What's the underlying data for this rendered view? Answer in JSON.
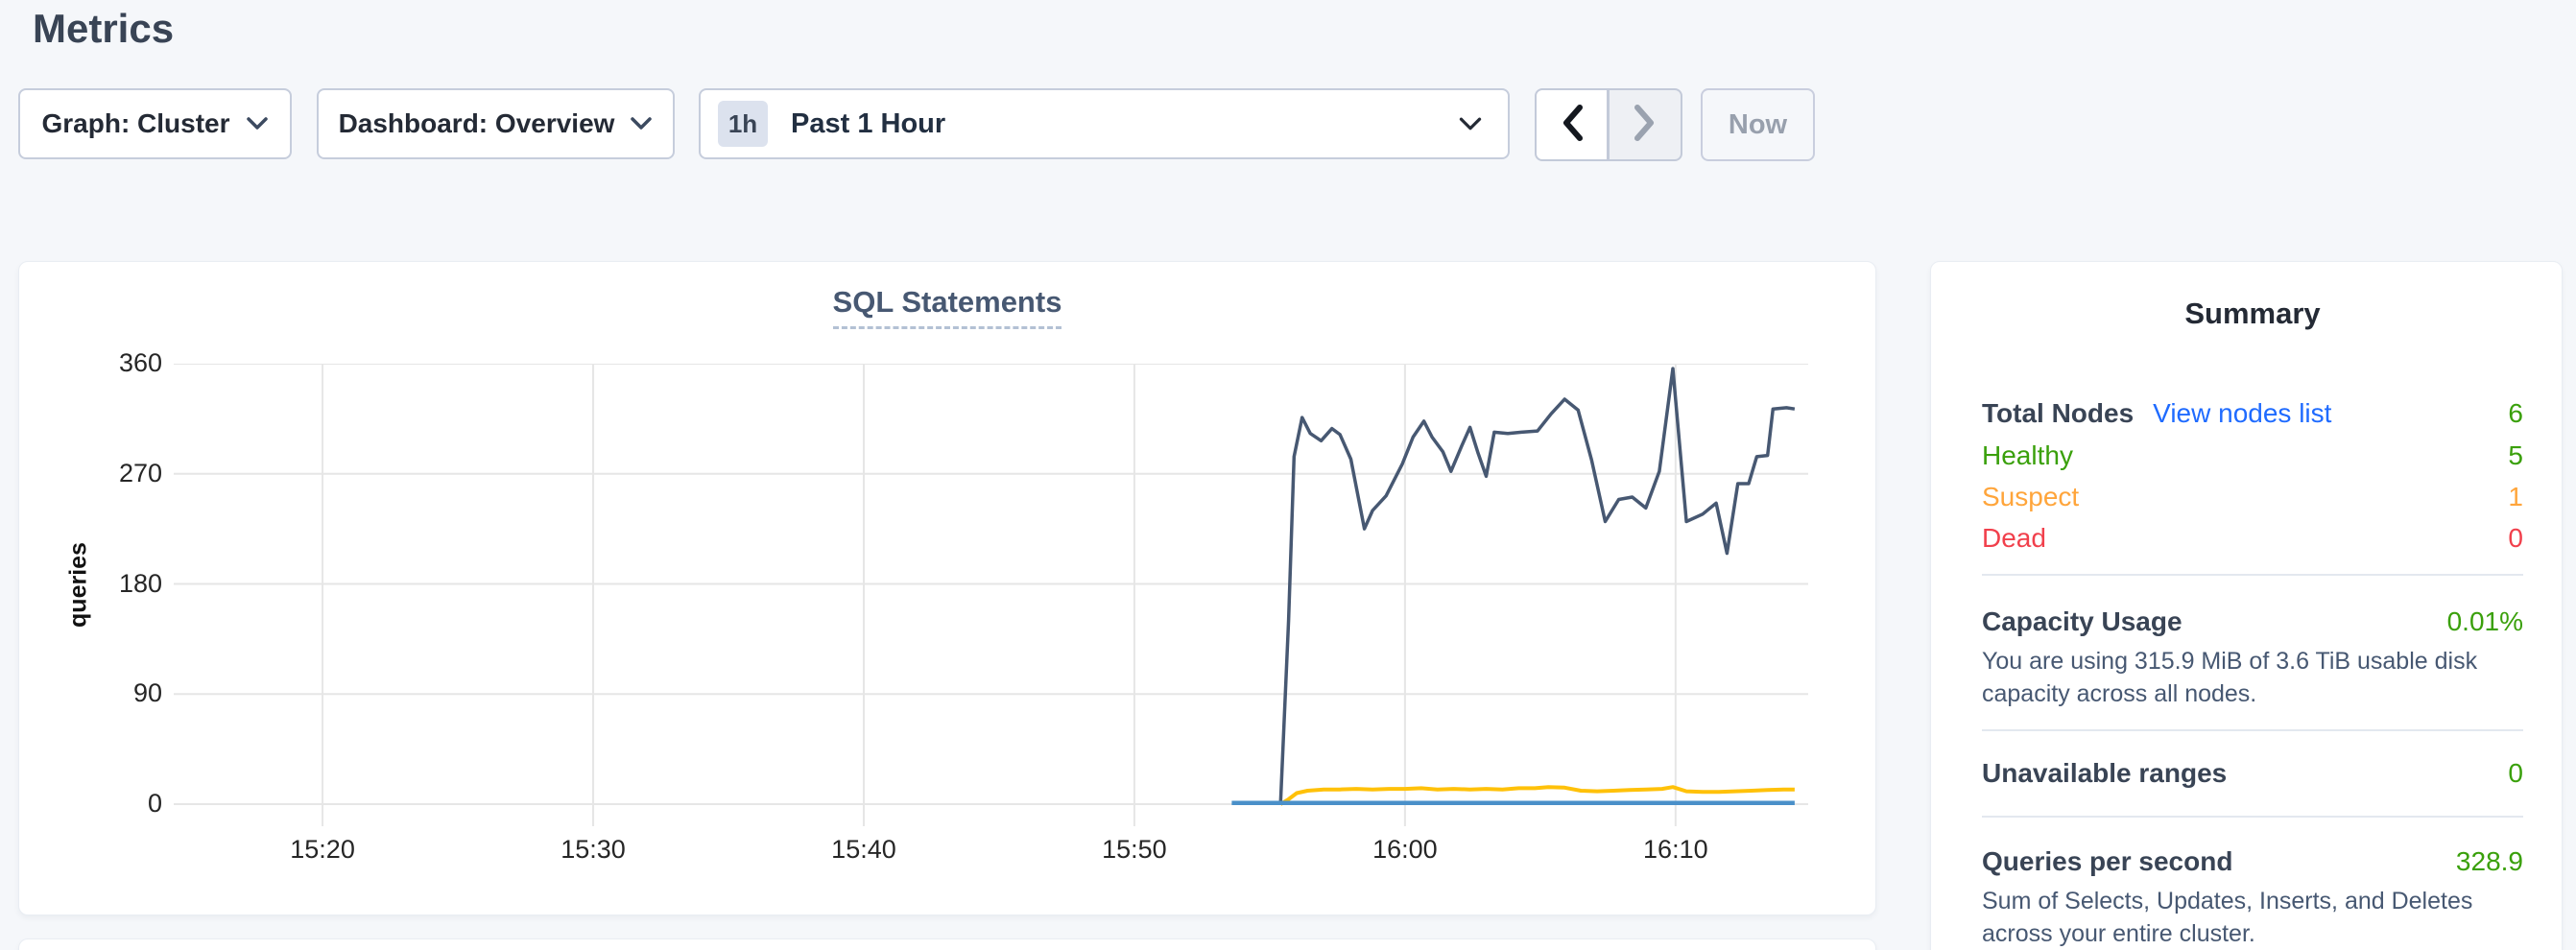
{
  "page": {
    "title": "Metrics"
  },
  "toolbar": {
    "graph_dropdown_label": "Graph: Cluster",
    "dashboard_dropdown_label": "Dashboard: Overview",
    "time_selector": {
      "badge": "1h",
      "label": "Past 1 Hour"
    },
    "now_button_label": "Now"
  },
  "chart_data": {
    "type": "line",
    "title": "SQL Statements",
    "ylabel": "queries",
    "grid": true,
    "legend": "none",
    "x_axis": {
      "min": 14.5,
      "max": 74.9,
      "unit": "minutes-after-15:00"
    },
    "y_axis": {
      "min": 0,
      "max": 360
    },
    "x_ticks": [
      {
        "v": 20,
        "label": "15:20"
      },
      {
        "v": 30,
        "label": "15:30"
      },
      {
        "v": 40,
        "label": "15:40"
      },
      {
        "v": 50,
        "label": "15:50"
      },
      {
        "v": 60,
        "label": "16:00"
      },
      {
        "v": 70,
        "label": "16:10"
      }
    ],
    "y_ticks": [
      {
        "v": 0,
        "label": "0"
      },
      {
        "v": 90,
        "label": "90"
      },
      {
        "v": 180,
        "label": "180"
      },
      {
        "v": 270,
        "label": "270"
      },
      {
        "v": 360,
        "label": "360"
      }
    ],
    "series": [
      {
        "name": "dark-slate-line",
        "color": "#475872",
        "width": 3.5,
        "points": [
          [
            55.4,
            0
          ],
          [
            55.7,
            150
          ],
          [
            55.9,
            284
          ],
          [
            56.2,
            316
          ],
          [
            56.5,
            303
          ],
          [
            56.9,
            297
          ],
          [
            57.3,
            307
          ],
          [
            57.6,
            302
          ],
          [
            58.0,
            282
          ],
          [
            58.5,
            225
          ],
          [
            58.8,
            240
          ],
          [
            59.3,
            252
          ],
          [
            59.9,
            278
          ],
          [
            60.3,
            300
          ],
          [
            60.7,
            313
          ],
          [
            61.0,
            300
          ],
          [
            61.4,
            288
          ],
          [
            61.7,
            272
          ],
          [
            62.1,
            293
          ],
          [
            62.4,
            308
          ],
          [
            62.7,
            287
          ],
          [
            63.0,
            268
          ],
          [
            63.3,
            304
          ],
          [
            63.8,
            303
          ],
          [
            64.3,
            304
          ],
          [
            64.9,
            305
          ],
          [
            65.4,
            319
          ],
          [
            65.9,
            331
          ],
          [
            66.4,
            322
          ],
          [
            66.9,
            281
          ],
          [
            67.4,
            231
          ],
          [
            67.9,
            249
          ],
          [
            68.4,
            251
          ],
          [
            68.9,
            242
          ],
          [
            69.4,
            272
          ],
          [
            69.9,
            356
          ],
          [
            70.4,
            231
          ],
          [
            71.0,
            237
          ],
          [
            71.5,
            246
          ],
          [
            71.9,
            205
          ],
          [
            72.3,
            262
          ],
          [
            72.7,
            262
          ],
          [
            73.0,
            284
          ],
          [
            73.4,
            285
          ],
          [
            73.6,
            323
          ],
          [
            74.1,
            324
          ],
          [
            74.4,
            323
          ]
        ]
      },
      {
        "name": "yellow-line",
        "color": "#ffc109",
        "width": 4,
        "points": [
          [
            55.4,
            0
          ],
          [
            55.7,
            4
          ],
          [
            56.0,
            9
          ],
          [
            56.4,
            11
          ],
          [
            57.0,
            12
          ],
          [
            57.6,
            12
          ],
          [
            58.2,
            12.5
          ],
          [
            58.8,
            12
          ],
          [
            59.4,
            12.5
          ],
          [
            60.0,
            12.5
          ],
          [
            60.6,
            13
          ],
          [
            61.2,
            12
          ],
          [
            61.8,
            12.5
          ],
          [
            62.4,
            12
          ],
          [
            63.0,
            12.5
          ],
          [
            63.6,
            12
          ],
          [
            64.2,
            13
          ],
          [
            64.8,
            13
          ],
          [
            65.3,
            14
          ],
          [
            65.9,
            13.5
          ],
          [
            66.5,
            11
          ],
          [
            67.1,
            10.5
          ],
          [
            67.7,
            11
          ],
          [
            68.3,
            11.5
          ],
          [
            68.9,
            12
          ],
          [
            69.5,
            12.5
          ],
          [
            69.9,
            14
          ],
          [
            70.4,
            10.5
          ],
          [
            71.0,
            10
          ],
          [
            71.6,
            10
          ],
          [
            72.2,
            10.5
          ],
          [
            72.8,
            11
          ],
          [
            73.4,
            11.5
          ],
          [
            74.0,
            12
          ],
          [
            74.4,
            12
          ]
        ]
      },
      {
        "name": "blue-flat-line",
        "color": "#4a90c9",
        "width": 4.5,
        "points": [
          [
            53.6,
            1
          ],
          [
            74.4,
            1
          ]
        ]
      }
    ]
  },
  "summary": {
    "title": "Summary",
    "nodes": {
      "total_label": "Total Nodes",
      "view_link": "View nodes list",
      "total_value": "6",
      "rows": [
        {
          "label": "Healthy",
          "value": "5"
        },
        {
          "label": "Suspect",
          "value": "1"
        },
        {
          "label": "Dead",
          "value": "0"
        }
      ]
    },
    "capacity": {
      "label": "Capacity Usage",
      "value": "0.01%",
      "description": "You are using 315.9 MiB of 3.6 TiB usable disk capacity across all nodes."
    },
    "unavailable": {
      "label": "Unavailable ranges",
      "value": "0"
    },
    "qps": {
      "label": "Queries per second",
      "value": "328.9",
      "description": "Sum of Selects, Updates, Inserts, and Deletes across your entire cluster."
    }
  },
  "colors": {
    "page_bg": "#f5f7fa",
    "card_bg": "#ffffff",
    "heading_text": "#394455",
    "slate_text": "#475872",
    "green": "#3aa00b",
    "orange": "#ffa53b",
    "red": "#f1404c",
    "link_blue": "#1f6bff",
    "gridline": "#e6e6e6",
    "line_dark": "#475872",
    "line_yellow": "#ffc109",
    "line_blue": "#4a90c9"
  }
}
